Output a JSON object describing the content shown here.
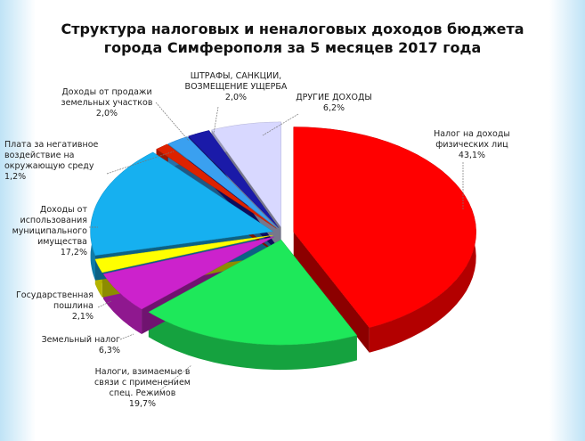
{
  "chart_data": {
    "type": "pie",
    "title": "Структура налоговых и неналоговых доходов бюджета\nгорода Симферополя за 5 месяцев 2017 года",
    "categories": [
      "Налог на доходы\nфизических лиц",
      "Налоги, взимаемые в\nсвязи с применением\nспец. Режимов",
      "Земельный налог",
      "Государственная\nпошлина",
      "Доходы от\nиспользования\nмуниципального\nимущества",
      "Плата за негативное\nвоздействие на\nокружающую среду",
      "Доходы от продажи\nземельных участков",
      "ШТРАФЫ, САНКЦИИ,\nВОЗМЕЩЕНИЕ УЩЕРБА",
      "ДРУГИЕ ДОХОДЫ"
    ],
    "values": [
      43.1,
      19.7,
      6.3,
      2.1,
      17.2,
      1.2,
      2.0,
      2.0,
      6.2
    ],
    "value_labels": [
      "43,1%",
      "19,7%",
      "6,3%",
      "2,1%",
      "17,2%",
      "1,2%",
      "2,0%",
      "2,0%",
      "6,2%"
    ],
    "colors": [
      "#ff0000",
      "#1ee85a",
      "#cc22cc",
      "#ffff00",
      "#16b0f0",
      "#dd2200",
      "#3aa0f0",
      "#1a1aa8",
      "#d8d8ff"
    ]
  }
}
